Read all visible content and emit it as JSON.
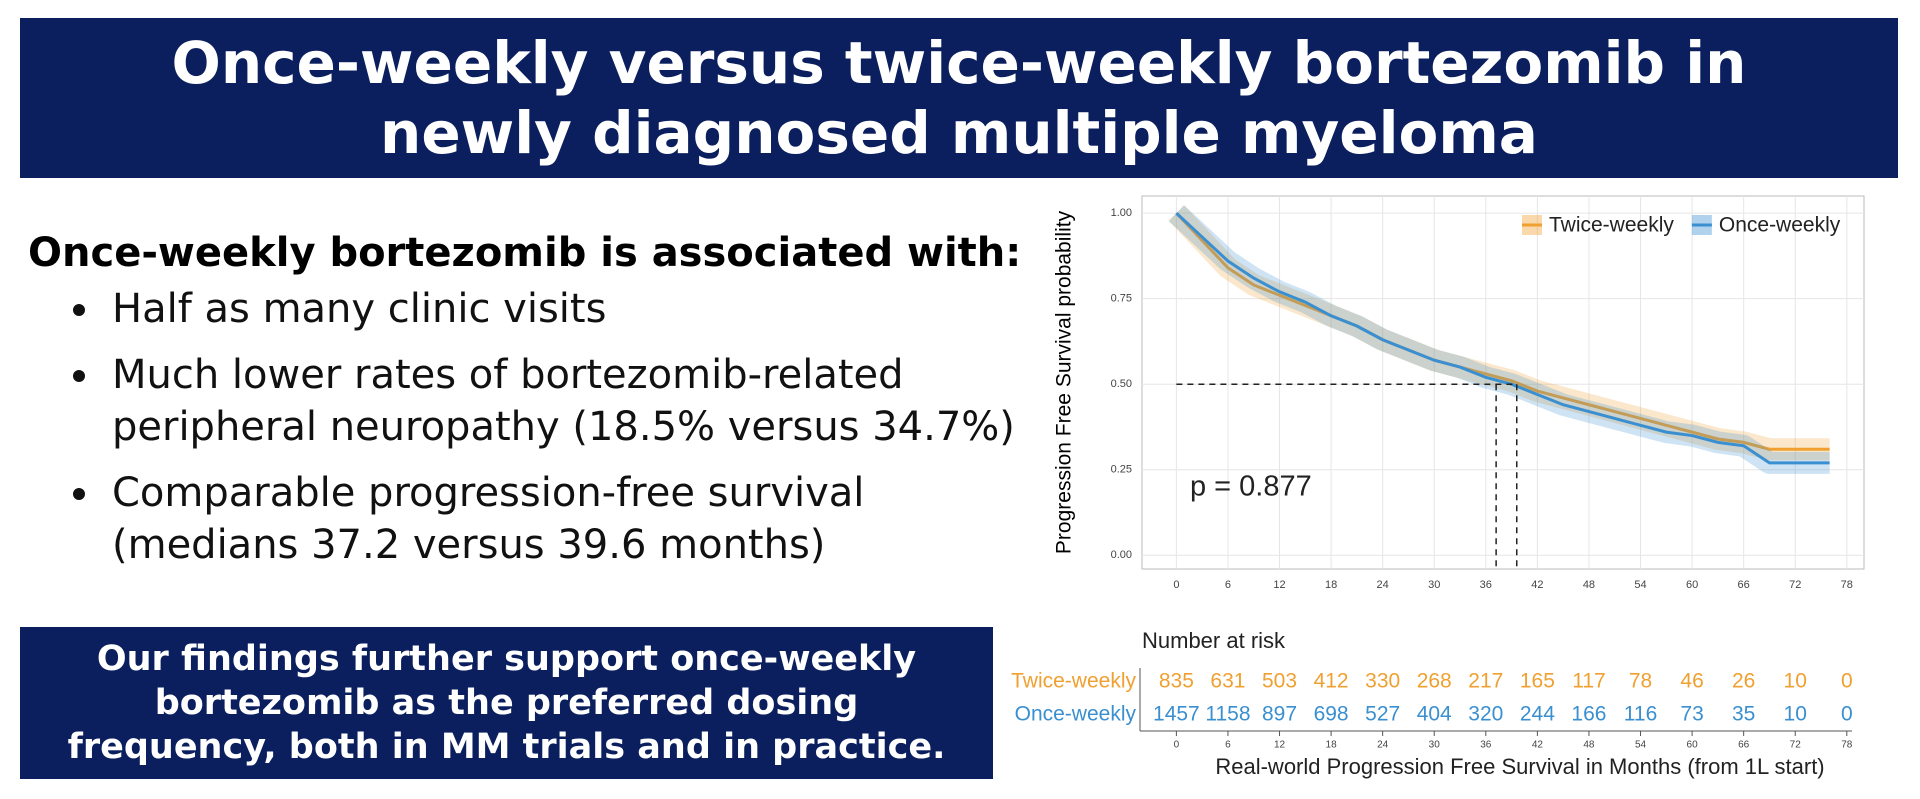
{
  "header": {
    "title": "Once-weekly versus twice-weekly bortezomib in newly diagnosed multiple myeloma"
  },
  "summary": {
    "heading": "Once-weekly bortezomib is associated with:",
    "bullets": [
      "Half as many clinic visits",
      "Much lower rates of bortezomib-related peripheral neuropathy (18.5% versus 34.7%)",
      "Comparable progression-free survival (medians 37.2 versus 39.6 months)"
    ]
  },
  "conclusion": "Our findings further support once-weekly bortezomib as the preferred dosing frequency, both in MM trials and in practice.",
  "chart_data": {
    "type": "line",
    "y_label": "Progression Free Survival probability",
    "x_label": "Real-world Progression Free Survival in Months (from 1L start)",
    "annotation": "p = 0.877",
    "legend": "top-right",
    "grid": true,
    "xlim": [
      -4,
      80
    ],
    "ylim": [
      -0.04,
      1.05
    ],
    "xticks": [
      0,
      6,
      12,
      18,
      24,
      30,
      36,
      42,
      48,
      54,
      60,
      66,
      72,
      78
    ],
    "yticks": [
      {
        "value": 0,
        "label": "0.00"
      },
      {
        "value": 0.25,
        "label": "0.25"
      },
      {
        "value": 0.5,
        "label": "0.50"
      },
      {
        "value": 0.75,
        "label": "0.75"
      },
      {
        "value": 1,
        "label": "1.00"
      }
    ],
    "x": [
      0,
      3,
      6,
      9,
      12,
      15,
      18,
      21,
      24,
      27,
      30,
      33,
      36,
      39,
      42,
      45,
      48,
      51,
      54,
      57,
      60,
      63,
      66,
      69,
      72,
      76
    ],
    "series": [
      {
        "name": "Twice-weekly",
        "color": "#f0a030",
        "values": [
          1.0,
          0.92,
          0.84,
          0.79,
          0.76,
          0.73,
          0.7,
          0.67,
          0.63,
          0.6,
          0.57,
          0.55,
          0.53,
          0.51,
          0.48,
          0.46,
          0.44,
          0.42,
          0.4,
          0.38,
          0.36,
          0.34,
          0.33,
          0.31,
          0.31,
          0.31
        ]
      },
      {
        "name": "Once-weekly",
        "color": "#3a8fd0",
        "values": [
          1.0,
          0.93,
          0.86,
          0.81,
          0.77,
          0.74,
          0.7,
          0.67,
          0.63,
          0.6,
          0.57,
          0.55,
          0.52,
          0.5,
          0.47,
          0.44,
          0.42,
          0.4,
          0.38,
          0.36,
          0.35,
          0.33,
          0.32,
          0.27,
          0.27,
          0.27
        ]
      }
    ],
    "median_lines": {
      "y": 0.5,
      "x": [
        37.2,
        39.6
      ]
    },
    "risk_table": {
      "title": "Number at risk",
      "series": [
        {
          "name": "Twice-weekly",
          "color": "#f0a030",
          "values": [
            835,
            631,
            503,
            412,
            330,
            268,
            217,
            165,
            117,
            78,
            46,
            26,
            10,
            0
          ]
        },
        {
          "name": "Once-weekly",
          "color": "#3a8fd0",
          "values": [
            1457,
            1158,
            897,
            698,
            527,
            404,
            320,
            244,
            166,
            116,
            73,
            35,
            10,
            0
          ]
        }
      ]
    }
  }
}
